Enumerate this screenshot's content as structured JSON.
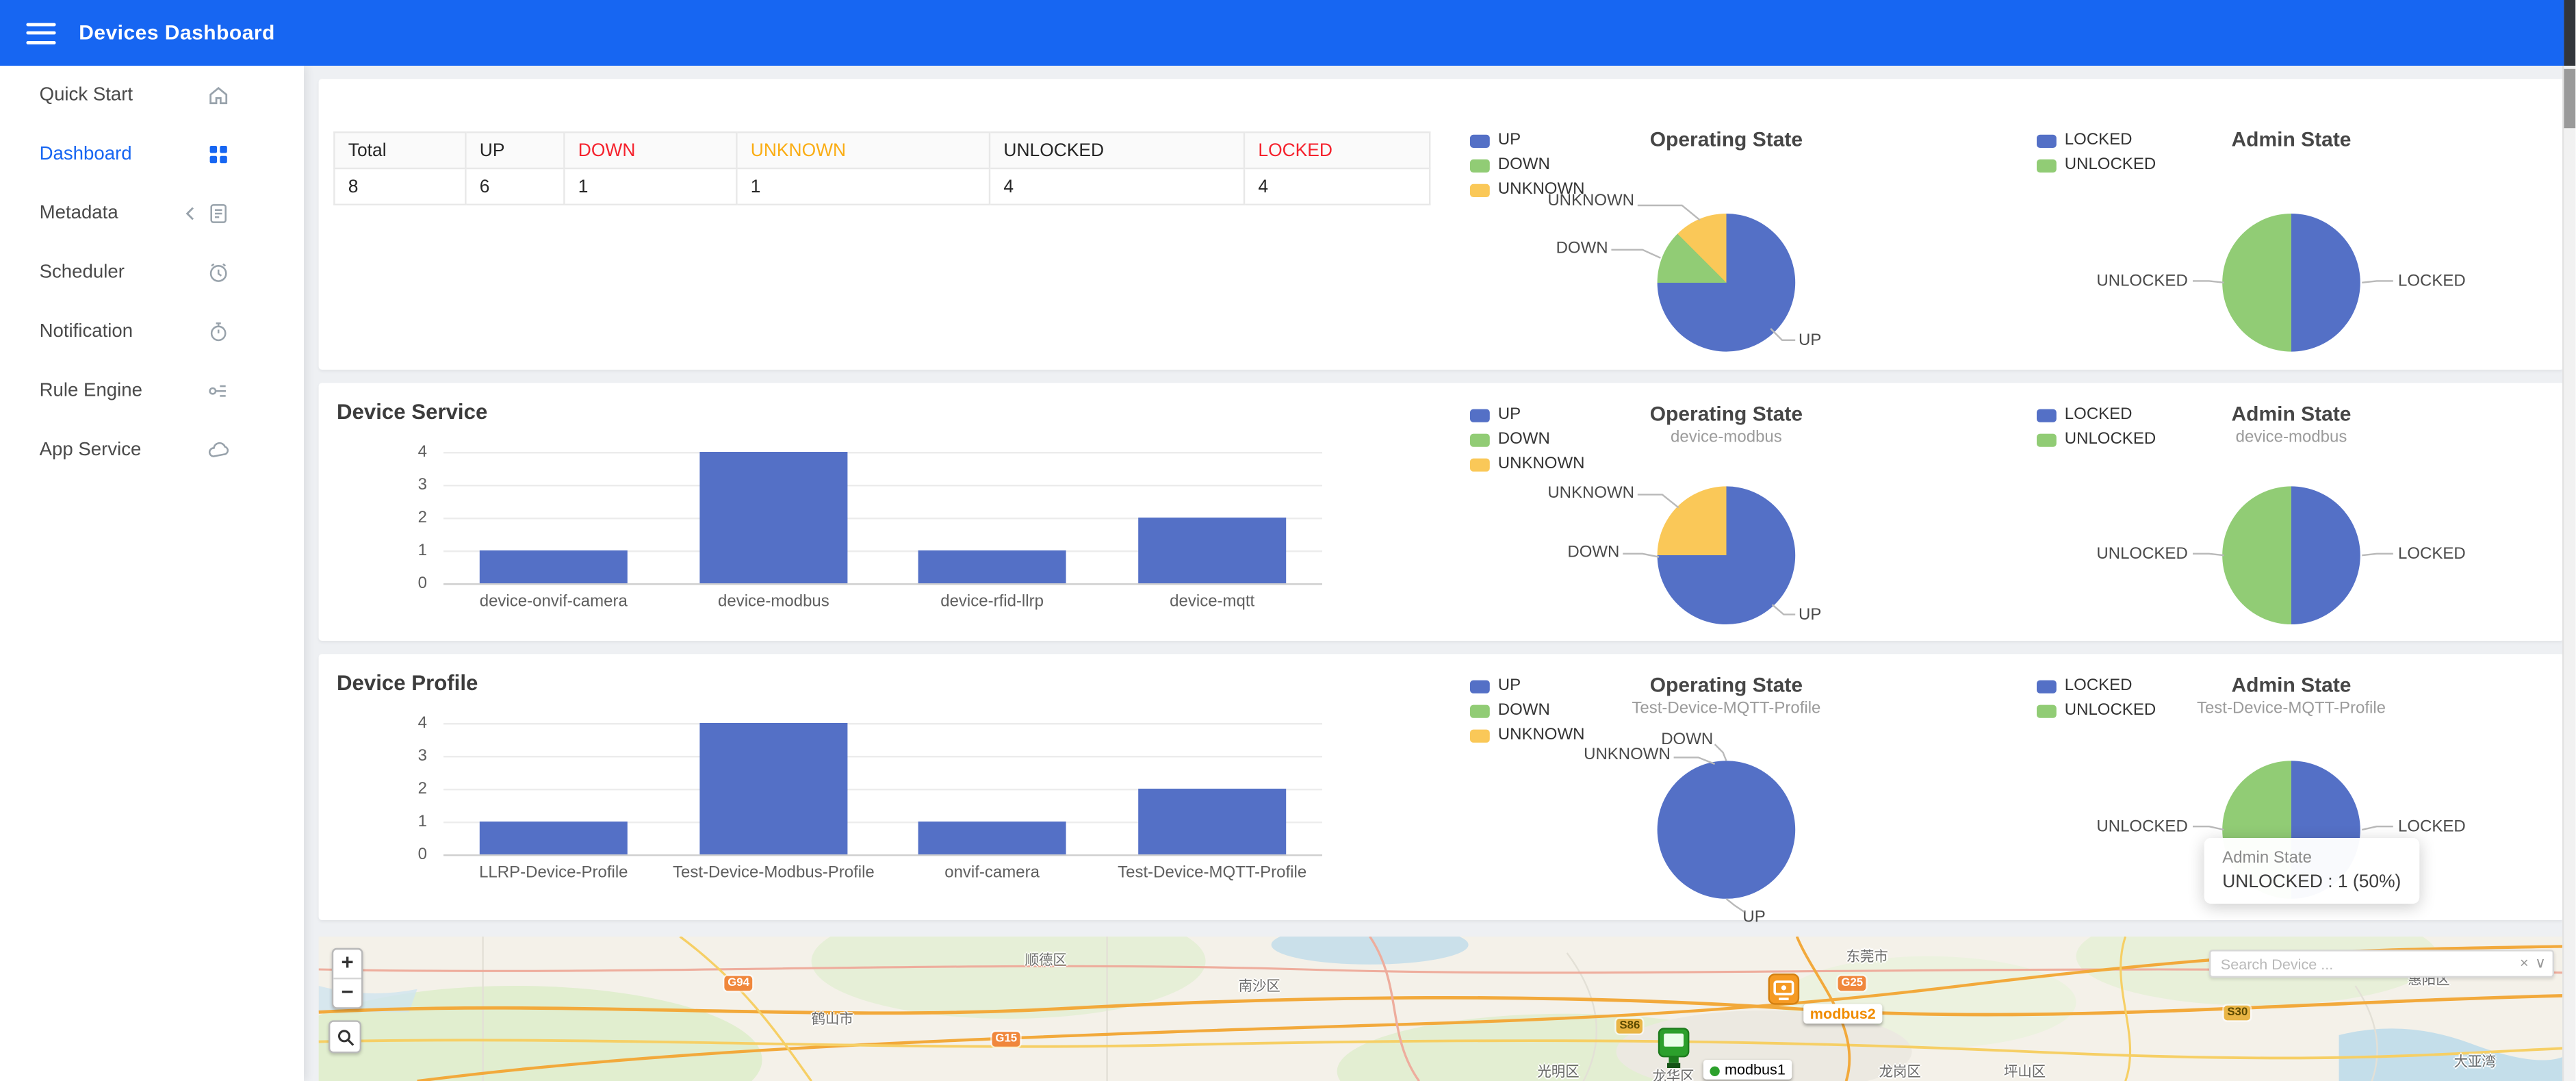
{
  "header": {
    "title": "Devices Dashboard"
  },
  "sidebar": {
    "items": [
      {
        "label": "Quick Start"
      },
      {
        "label": "Dashboard"
      },
      {
        "label": "Metadata"
      },
      {
        "label": "Scheduler"
      },
      {
        "label": "Notification"
      },
      {
        "label": "Rule Engine"
      },
      {
        "label": "App Service"
      }
    ]
  },
  "colors": {
    "header_blue": "#1766f2",
    "up": "#5470c6",
    "down": "#91cc75",
    "unknown": "#fac858",
    "locked": "#5470c6",
    "unlocked": "#91cc75",
    "bar": "#5470c6",
    "down_header_text": "#f5222d",
    "unknown_header_text": "#faad14",
    "locked_header_text": "#f5222d"
  },
  "summary_table": {
    "headers": [
      "Total",
      "UP",
      "DOWN",
      "UNKNOWN",
      "UNLOCKED",
      "LOCKED"
    ],
    "values": [
      "8",
      "6",
      "1",
      "1",
      "4",
      "4"
    ]
  },
  "overview": {
    "operating": {
      "title": "Operating State",
      "slices": [
        {
          "label": "UP",
          "value": 6,
          "color": "#5470c6"
        },
        {
          "label": "DOWN",
          "value": 1,
          "color": "#91cc75"
        },
        {
          "label": "UNKNOWN",
          "value": 1,
          "color": "#fac858"
        }
      ]
    },
    "admin": {
      "title": "Admin State",
      "slices": [
        {
          "label": "LOCKED",
          "value": 4,
          "color": "#5470c6"
        },
        {
          "label": "UNLOCKED",
          "value": 4,
          "color": "#91cc75"
        }
      ]
    }
  },
  "device_service": {
    "title": "Device Service",
    "chart": {
      "type": "bar",
      "categories": [
        "device-onvif-camera",
        "device-modbus",
        "device-rfid-llrp",
        "device-mqtt"
      ],
      "values": [
        1,
        4,
        1,
        2
      ],
      "yticks": [
        "4",
        "3",
        "2",
        "1",
        "0"
      ],
      "ymax": 4
    },
    "operating": {
      "title": "Operating State",
      "subtitle": "device-modbus",
      "slices": [
        {
          "label": "UP",
          "value": 3,
          "color": "#5470c6"
        },
        {
          "label": "DOWN",
          "value": 0,
          "color": "#91cc75"
        },
        {
          "label": "UNKNOWN",
          "value": 1,
          "color": "#fac858"
        }
      ]
    },
    "admin": {
      "title": "Admin State",
      "subtitle": "device-modbus",
      "slices": [
        {
          "label": "LOCKED",
          "value": 2,
          "color": "#5470c6"
        },
        {
          "label": "UNLOCKED",
          "value": 2,
          "color": "#91cc75"
        }
      ]
    }
  },
  "device_profile": {
    "title": "Device Profile",
    "chart": {
      "type": "bar",
      "categories": [
        "LLRP-Device-Profile",
        "Test-Device-Modbus-Profile",
        "onvif-camera",
        "Test-Device-MQTT-Profile"
      ],
      "values": [
        1,
        4,
        1,
        2
      ],
      "yticks": [
        "4",
        "3",
        "2",
        "1",
        "0"
      ],
      "ymax": 4
    },
    "operating": {
      "title": "Operating State",
      "subtitle": "Test-Device-MQTT-Profile",
      "slices": [
        {
          "label": "UP",
          "value": 2,
          "color": "#5470c6"
        },
        {
          "label": "DOWN",
          "value": 0,
          "color": "#91cc75"
        },
        {
          "label": "UNKNOWN",
          "value": 0,
          "color": "#fac858"
        }
      ]
    },
    "admin": {
      "title": "Admin State",
      "subtitle": "Test-Device-MQTT-Profile",
      "slices": [
        {
          "label": "LOCKED",
          "value": 1,
          "color": "#5470c6"
        },
        {
          "label": "UNLOCKED",
          "value": 1,
          "color": "#91cc75"
        }
      ]
    },
    "tooltip": {
      "title": "Admin State",
      "value": "UNLOCKED : 1 (50%)"
    }
  },
  "map": {
    "zoom_in": "+",
    "zoom_out": "−",
    "search_placeholder": "Search Device ...",
    "search_clear": "×",
    "search_caret": "∨",
    "markers": [
      {
        "label": "modbus2",
        "color": "#f59a23"
      },
      {
        "label": "modbus1",
        "color": "#2ca02c"
      }
    ],
    "shields": [
      "G94",
      "G15",
      "S86",
      "G25",
      "S30"
    ],
    "places": [
      "鹤山市",
      "顺德区",
      "南沙区",
      "东莞市",
      "光明区",
      "龙华区",
      "龙岗区",
      "坪山区",
      "惠阳区",
      "大亚湾"
    ]
  }
}
